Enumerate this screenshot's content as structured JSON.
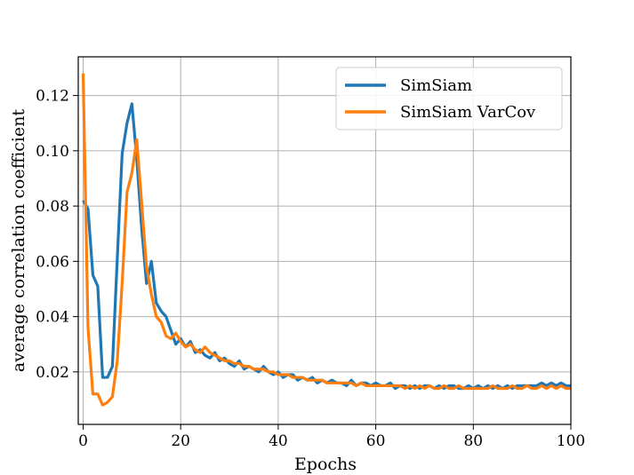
{
  "chart_data": {
    "type": "line",
    "xlabel": "Epochs",
    "ylabel": "average correlation coefficient",
    "xlim": [
      -1,
      100
    ],
    "ylim": [
      0.001,
      0.134
    ],
    "xticks": [
      0,
      20,
      40,
      60,
      80,
      100
    ],
    "xtick_labels": [
      "0",
      "20",
      "40",
      "60",
      "80",
      "100"
    ],
    "yticks": [
      0.02,
      0.04,
      0.06,
      0.08,
      0.1,
      0.12
    ],
    "ytick_labels": [
      "0.02",
      "0.04",
      "0.06",
      "0.08",
      "0.10",
      "0.12"
    ],
    "grid": true,
    "legend_position": "top-right",
    "series": [
      {
        "name": "SimSiam",
        "color": "#1f77b4",
        "x": [
          0,
          1,
          2,
          3,
          4,
          5,
          6,
          7,
          8,
          9,
          10,
          11,
          12,
          13,
          14,
          15,
          16,
          17,
          18,
          19,
          20,
          21,
          22,
          23,
          24,
          25,
          26,
          27,
          28,
          29,
          30,
          31,
          32,
          33,
          34,
          35,
          36,
          37,
          38,
          39,
          40,
          41,
          42,
          43,
          44,
          45,
          46,
          47,
          48,
          49,
          50,
          51,
          52,
          53,
          54,
          55,
          56,
          57,
          58,
          59,
          60,
          61,
          62,
          63,
          64,
          65,
          66,
          67,
          68,
          69,
          70,
          71,
          72,
          73,
          74,
          75,
          76,
          77,
          78,
          79,
          80,
          81,
          82,
          83,
          84,
          85,
          86,
          87,
          88,
          89,
          90,
          91,
          92,
          93,
          94,
          95,
          96,
          97,
          98,
          99,
          100
        ],
        "values": [
          0.082,
          0.079,
          0.055,
          0.051,
          0.018,
          0.018,
          0.022,
          0.061,
          0.099,
          0.11,
          0.117,
          0.097,
          0.072,
          0.052,
          0.06,
          0.045,
          0.042,
          0.04,
          0.035,
          0.03,
          0.032,
          0.029,
          0.031,
          0.027,
          0.028,
          0.026,
          0.025,
          0.027,
          0.024,
          0.025,
          0.023,
          0.022,
          0.024,
          0.021,
          0.022,
          0.021,
          0.02,
          0.022,
          0.02,
          0.019,
          0.02,
          0.018,
          0.019,
          0.019,
          0.017,
          0.018,
          0.017,
          0.018,
          0.016,
          0.017,
          0.016,
          0.017,
          0.016,
          0.016,
          0.015,
          0.017,
          0.015,
          0.016,
          0.016,
          0.015,
          0.016,
          0.015,
          0.015,
          0.016,
          0.014,
          0.015,
          0.015,
          0.014,
          0.015,
          0.014,
          0.015,
          0.015,
          0.014,
          0.015,
          0.014,
          0.015,
          0.015,
          0.014,
          0.014,
          0.015,
          0.014,
          0.015,
          0.014,
          0.015,
          0.014,
          0.015,
          0.014,
          0.015,
          0.014,
          0.015,
          0.015,
          0.015,
          0.015,
          0.015,
          0.016,
          0.015,
          0.016,
          0.015,
          0.016,
          0.015,
          0.015
        ]
      },
      {
        "name": "SimSiam VarCov",
        "color": "#ff7f0e",
        "x": [
          0,
          1,
          2,
          3,
          4,
          5,
          6,
          7,
          8,
          9,
          10,
          11,
          12,
          13,
          14,
          15,
          16,
          17,
          18,
          19,
          20,
          21,
          22,
          23,
          24,
          25,
          26,
          27,
          28,
          29,
          30,
          31,
          32,
          33,
          34,
          35,
          36,
          37,
          38,
          39,
          40,
          41,
          42,
          43,
          44,
          45,
          46,
          47,
          48,
          49,
          50,
          51,
          52,
          53,
          54,
          55,
          56,
          57,
          58,
          59,
          60,
          61,
          62,
          63,
          64,
          65,
          66,
          67,
          68,
          69,
          70,
          71,
          72,
          73,
          74,
          75,
          76,
          77,
          78,
          79,
          80,
          81,
          82,
          83,
          84,
          85,
          86,
          87,
          88,
          89,
          90,
          91,
          92,
          93,
          94,
          95,
          96,
          97,
          98,
          99,
          100
        ],
        "values": [
          0.128,
          0.036,
          0.012,
          0.012,
          0.008,
          0.009,
          0.011,
          0.024,
          0.052,
          0.085,
          0.092,
          0.104,
          0.081,
          0.058,
          0.048,
          0.04,
          0.038,
          0.033,
          0.032,
          0.034,
          0.031,
          0.029,
          0.03,
          0.028,
          0.027,
          0.029,
          0.027,
          0.026,
          0.025,
          0.024,
          0.024,
          0.023,
          0.023,
          0.022,
          0.022,
          0.021,
          0.021,
          0.021,
          0.02,
          0.02,
          0.019,
          0.019,
          0.019,
          0.018,
          0.018,
          0.018,
          0.017,
          0.017,
          0.017,
          0.017,
          0.016,
          0.016,
          0.016,
          0.016,
          0.016,
          0.016,
          0.015,
          0.016,
          0.015,
          0.015,
          0.015,
          0.015,
          0.015,
          0.015,
          0.015,
          0.015,
          0.014,
          0.015,
          0.014,
          0.015,
          0.014,
          0.015,
          0.014,
          0.014,
          0.015,
          0.014,
          0.014,
          0.015,
          0.014,
          0.014,
          0.014,
          0.014,
          0.014,
          0.014,
          0.015,
          0.014,
          0.014,
          0.014,
          0.015,
          0.014,
          0.014,
          0.015,
          0.014,
          0.014,
          0.015,
          0.014,
          0.015,
          0.014,
          0.015,
          0.014,
          0.014
        ]
      }
    ]
  }
}
